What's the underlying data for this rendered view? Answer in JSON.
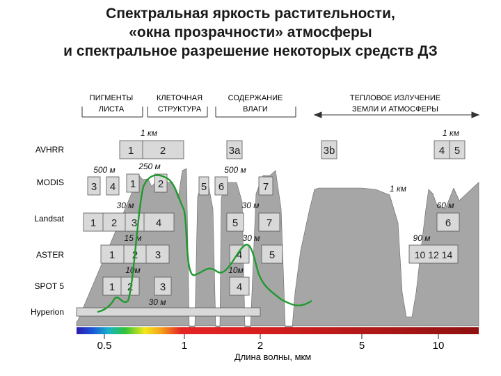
{
  "title": {
    "line1": "Спектральная яркость растительности,",
    "line2": "«окна прозрачности» атмосферы",
    "line3": "и спектральное разрешение некоторых средств ДЗ"
  },
  "regions": [
    {
      "line1": "ПИГМЕНТЫ",
      "line2": "ЛИСТА"
    },
    {
      "line1": "КЛЕТОЧНАЯ",
      "line2": "СТРУКТУРА"
    },
    {
      "line1": "СОДЕРЖАНИЕ",
      "line2": "ВЛАГИ"
    },
    {
      "line1": "ТЕПЛОВОЕ ИЗЛУЧЕНИЕ",
      "line2": "ЗЕМЛИ И АТМОСФЕРЫ"
    }
  ],
  "sensors": [
    "AVHRR",
    "MODIS",
    "Landsat",
    "ASTER",
    "SPOT 5",
    "Hyperion"
  ],
  "resolutions": {
    "avhrr_1": "1 км",
    "avhrr_2": "1 км",
    "modis_500a": "500 м",
    "modis_250": "250 м",
    "modis_500b": "500 м",
    "modis_1": "1 км",
    "landsat_30a": "30 м",
    "landsat_30b": "30 м",
    "landsat_60": "60 м",
    "aster_15": "15 м",
    "aster_30": "30 м",
    "aster_90": "90 м",
    "spot_10a": "10м",
    "spot_10b": "10м",
    "hyperion_30": "30 м"
  },
  "bands": {
    "avhrr": [
      "1",
      "2",
      "3a",
      "3b",
      "4",
      "5"
    ],
    "modis": [
      "3",
      "4",
      "1",
      "2",
      "5",
      "6",
      "7"
    ],
    "landsat": [
      "1",
      "2",
      "3",
      "4",
      "5",
      "7",
      "6"
    ],
    "aster": [
      "1",
      "2",
      "3",
      "4",
      "5",
      "10 12 14"
    ],
    "spot": [
      "1",
      "2",
      "3",
      "4"
    ]
  },
  "axis": {
    "ticks": [
      "0.5",
      "1",
      "2",
      "5",
      "10"
    ],
    "label": "Длина волны, мкм"
  },
  "colors": {
    "window_fill": "#a6a6a6",
    "band_box": "#d9d9d9",
    "vegetation_curve": "#1f9a2e",
    "band_stroke": "#555555"
  }
}
